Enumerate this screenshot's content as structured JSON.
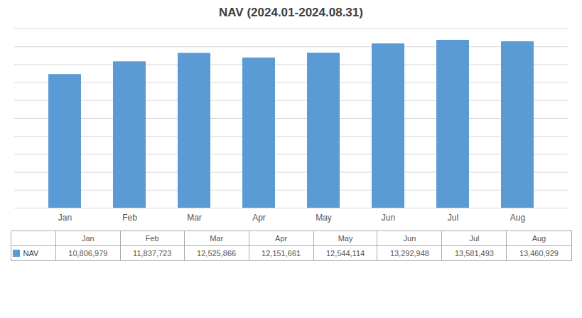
{
  "chart_data": {
    "type": "bar",
    "title": "NAV (2024.01-2024.08.31)",
    "categories": [
      "Jan",
      "Feb",
      "Mar",
      "Apr",
      "May",
      "Jun",
      "Jul",
      "Aug"
    ],
    "series": [
      {
        "name": "NAV",
        "color": "#5B9BD5",
        "values": [
          10806979,
          11837723,
          12525866,
          12151661,
          12544114,
          13292948,
          13581493,
          13460929
        ],
        "value_labels": [
          "10,806,979",
          "11,837,723",
          "12,525,866",
          "12,151,661",
          "12,544,114",
          "13,292,948",
          "13,581,493",
          "13,460,929"
        ]
      }
    ],
    "ylim": [
      0,
      14500000
    ],
    "yticks": [
      0,
      1450000,
      2900000,
      4350000,
      5800000,
      7250000,
      8700000,
      10150000,
      11600000,
      13050000,
      14500000
    ],
    "grid": true,
    "tick_labels": "x",
    "data_labels": true
  }
}
